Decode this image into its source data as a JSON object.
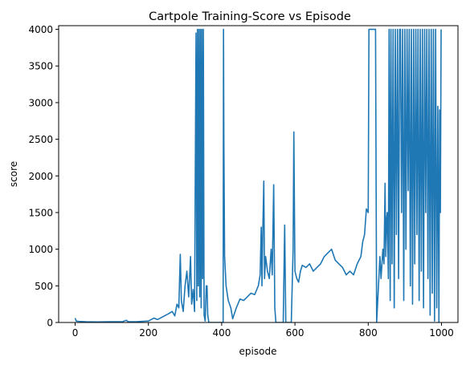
{
  "chart_data": {
    "type": "line",
    "title": "Cartpole Training-Score vs Episode",
    "xlabel": "episode",
    "ylabel": "score",
    "xlim": [
      -45,
      1045
    ],
    "ylim": [
      0,
      4050
    ],
    "x_ticks": [
      0,
      200,
      400,
      600,
      800,
      1000
    ],
    "y_ticks": [
      0,
      500,
      1000,
      1500,
      2000,
      2500,
      3000,
      3500,
      4000
    ],
    "grid": false,
    "series_color": "#1f77b4",
    "series": [
      {
        "points": [
          [
            0,
            60
          ],
          [
            3,
            20
          ],
          [
            10,
            15
          ],
          [
            30,
            10
          ],
          [
            60,
            8
          ],
          [
            100,
            10
          ],
          [
            130,
            12
          ],
          [
            140,
            30
          ],
          [
            145,
            10
          ],
          [
            170,
            12
          ],
          [
            200,
            20
          ],
          [
            215,
            60
          ],
          [
            225,
            40
          ],
          [
            240,
            80
          ],
          [
            255,
            120
          ],
          [
            265,
            150
          ],
          [
            272,
            90
          ],
          [
            278,
            250
          ],
          [
            283,
            200
          ],
          [
            287,
            930
          ],
          [
            290,
            300
          ],
          [
            295,
            150
          ],
          [
            300,
            500
          ],
          [
            305,
            700
          ],
          [
            310,
            350
          ],
          [
            315,
            900
          ],
          [
            318,
            250
          ],
          [
            322,
            450
          ],
          [
            326,
            150
          ],
          [
            330,
            3950
          ],
          [
            332,
            300
          ],
          [
            334,
            4000
          ],
          [
            336,
            500
          ],
          [
            338,
            4000
          ],
          [
            340,
            350
          ],
          [
            342,
            4000
          ],
          [
            344,
            200
          ],
          [
            346,
            4000
          ],
          [
            348,
            600
          ],
          [
            350,
            4000
          ],
          [
            352,
            100
          ],
          [
            355,
            20
          ],
          [
            358,
            500
          ],
          [
            360,
            500
          ],
          [
            362,
            100
          ],
          [
            365,
            0
          ],
          [
            404,
            0
          ],
          [
            405,
            4000
          ],
          [
            406,
            2500
          ],
          [
            408,
            900
          ],
          [
            412,
            500
          ],
          [
            418,
            300
          ],
          [
            425,
            200
          ],
          [
            430,
            50
          ],
          [
            440,
            200
          ],
          [
            450,
            320
          ],
          [
            460,
            300
          ],
          [
            470,
            350
          ],
          [
            480,
            400
          ],
          [
            490,
            380
          ],
          [
            500,
            500
          ],
          [
            505,
            650
          ],
          [
            508,
            1300
          ],
          [
            510,
            500
          ],
          [
            512,
            1200
          ],
          [
            515,
            1930
          ],
          [
            517,
            600
          ],
          [
            520,
            900
          ],
          [
            525,
            700
          ],
          [
            530,
            600
          ],
          [
            535,
            1000
          ],
          [
            538,
            650
          ],
          [
            542,
            1880
          ],
          [
            545,
            200
          ],
          [
            548,
            0
          ],
          [
            560,
            0
          ],
          [
            568,
            0
          ],
          [
            572,
            1330
          ],
          [
            575,
            0
          ],
          [
            585,
            0
          ],
          [
            590,
            0
          ],
          [
            595,
            1000
          ],
          [
            597,
            2600
          ],
          [
            600,
            700
          ],
          [
            605,
            600
          ],
          [
            610,
            550
          ],
          [
            615,
            700
          ],
          [
            620,
            780
          ],
          [
            630,
            750
          ],
          [
            640,
            800
          ],
          [
            650,
            700
          ],
          [
            660,
            750
          ],
          [
            670,
            800
          ],
          [
            680,
            900
          ],
          [
            690,
            950
          ],
          [
            700,
            1000
          ],
          [
            710,
            850
          ],
          [
            720,
            800
          ],
          [
            730,
            750
          ],
          [
            740,
            650
          ],
          [
            750,
            700
          ],
          [
            760,
            650
          ],
          [
            770,
            800
          ],
          [
            780,
            900
          ],
          [
            785,
            1100
          ],
          [
            790,
            1200
          ],
          [
            795,
            1550
          ],
          [
            800,
            1500
          ],
          [
            802,
            4000
          ],
          [
            820,
            4000
          ],
          [
            823,
            0
          ],
          [
            828,
            500
          ],
          [
            832,
            900
          ],
          [
            835,
            600
          ],
          [
            840,
            1000
          ],
          [
            843,
            800
          ],
          [
            846,
            1900
          ],
          [
            848,
            900
          ],
          [
            850,
            1400
          ],
          [
            852,
            1500
          ],
          [
            855,
            600
          ],
          [
            857,
            4000
          ],
          [
            860,
            300
          ],
          [
            862,
            4000
          ],
          [
            865,
            800
          ],
          [
            868,
            4000
          ],
          [
            871,
            200
          ],
          [
            874,
            4000
          ],
          [
            877,
            1200
          ],
          [
            880,
            4000
          ],
          [
            883,
            600
          ],
          [
            886,
            4000
          ],
          [
            888,
            4000
          ],
          [
            891,
            1500
          ],
          [
            894,
            4000
          ],
          [
            897,
            300
          ],
          [
            900,
            4000
          ],
          [
            903,
            1000
          ],
          [
            906,
            4000
          ],
          [
            909,
            1800
          ],
          [
            912,
            4000
          ],
          [
            915,
            500
          ],
          [
            918,
            4000
          ],
          [
            921,
            250
          ],
          [
            924,
            4000
          ],
          [
            927,
            800
          ],
          [
            930,
            4000
          ],
          [
            933,
            1200
          ],
          [
            936,
            4000
          ],
          [
            939,
            300
          ],
          [
            942,
            4000
          ],
          [
            945,
            700
          ],
          [
            948,
            4000
          ],
          [
            951,
            200
          ],
          [
            954,
            4000
          ],
          [
            957,
            1500
          ],
          [
            960,
            4000
          ],
          [
            963,
            600
          ],
          [
            966,
            4000
          ],
          [
            969,
            100
          ],
          [
            972,
            4000
          ],
          [
            975,
            400
          ],
          [
            978,
            4000
          ],
          [
            981,
            20
          ],
          [
            984,
            4000
          ],
          [
            987,
            200
          ],
          [
            990,
            2950
          ],
          [
            993,
            0
          ],
          [
            995,
            2900
          ],
          [
            997,
            1500
          ],
          [
            999,
            4000
          ]
        ]
      }
    ]
  }
}
